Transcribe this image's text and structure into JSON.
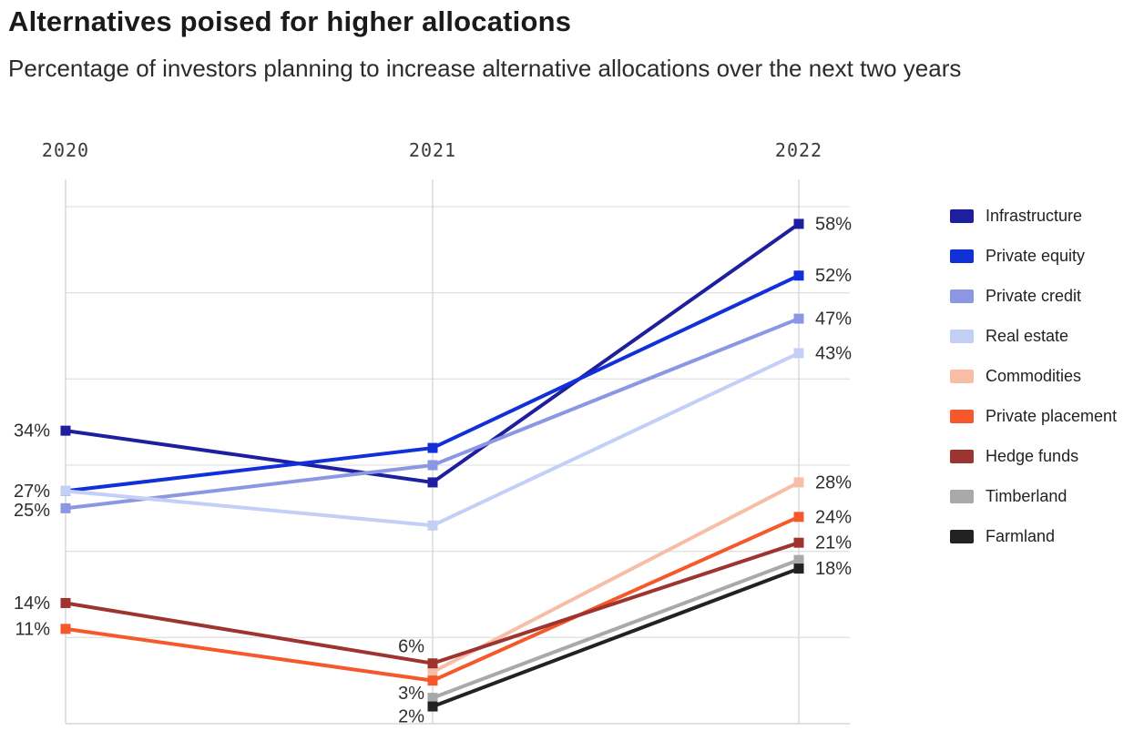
{
  "header": {
    "title": "Alternatives poised for higher allocations",
    "subtitle": "Percentage of investors planning to increase alternative allocations over the next two years"
  },
  "chart_data": {
    "type": "line",
    "title": "Alternatives poised for higher allocations",
    "subtitle": "Percentage of investors planning to increase alternative allocations over the next two years",
    "x_categories": [
      "2020",
      "2021",
      "2022"
    ],
    "series": [
      {
        "name": "Infrastructure",
        "color": "#1d1f9e",
        "values": [
          34,
          28,
          58
        ]
      },
      {
        "name": "Private equity",
        "color": "#1230d9",
        "values": [
          27,
          32,
          52
        ]
      },
      {
        "name": "Private credit",
        "color": "#8b97e2",
        "values": [
          25,
          30,
          47
        ]
      },
      {
        "name": "Real estate",
        "color": "#c3cff6",
        "values": [
          27,
          23,
          43
        ]
      },
      {
        "name": "Commodities",
        "color": "#f8bda6",
        "values": [
          null,
          6,
          28
        ]
      },
      {
        "name": "Private placement",
        "color": "#f5592b",
        "values": [
          11,
          5,
          24
        ]
      },
      {
        "name": "Hedge funds",
        "color": "#9e3430",
        "values": [
          14,
          7,
          21
        ]
      },
      {
        "name": "Timberland",
        "color": "#a9a9a9",
        "values": [
          null,
          3,
          19
        ]
      },
      {
        "name": "Farmland",
        "color": "#222222",
        "values": [
          null,
          2,
          18
        ]
      }
    ],
    "value_labels": [
      {
        "series": "Infrastructure",
        "x": "2020",
        "text": "34%",
        "side": "left",
        "dy": 0
      },
      {
        "series": "Private equity",
        "x": "2020",
        "text": "27%",
        "side": "left",
        "dy": 0
      },
      {
        "series": "Private credit",
        "x": "2020",
        "text": "25%",
        "side": "left",
        "dy": 2
      },
      {
        "series": "Hedge funds",
        "x": "2020",
        "text": "14%",
        "side": "left",
        "dy": 0
      },
      {
        "series": "Private placement",
        "x": "2020",
        "text": "11%",
        "side": "left",
        "dy": 0
      },
      {
        "series": "Commodities",
        "x": "2021",
        "text": "6%",
        "side": "left",
        "dy": -28
      },
      {
        "series": "Timberland",
        "x": "2021",
        "text": "3%",
        "side": "left",
        "dy": -5
      },
      {
        "series": "Farmland",
        "x": "2021",
        "text": "2%",
        "side": "left",
        "dy": 11
      },
      {
        "series": "Infrastructure",
        "x": "2022",
        "text": "58%",
        "side": "right",
        "dy": 0
      },
      {
        "series": "Private equity",
        "x": "2022",
        "text": "52%",
        "side": "right",
        "dy": 0
      },
      {
        "series": "Private credit",
        "x": "2022",
        "text": "47%",
        "side": "right",
        "dy": 0
      },
      {
        "series": "Real estate",
        "x": "2022",
        "text": "43%",
        "side": "right",
        "dy": 0
      },
      {
        "series": "Commodities",
        "x": "2022",
        "text": "28%",
        "side": "right",
        "dy": 0
      },
      {
        "series": "Private placement",
        "x": "2022",
        "text": "24%",
        "side": "right",
        "dy": 0
      },
      {
        "series": "Hedge funds",
        "x": "2022",
        "text": "21%",
        "side": "right",
        "dy": 0
      },
      {
        "series": "Farmland",
        "x": "2022",
        "text": "18%",
        "side": "right",
        "dy": 0
      }
    ],
    "xlabel": "",
    "ylabel": "",
    "ylim": [
      0,
      63
    ],
    "grid": {
      "show": true,
      "horizontal_step": 10
    },
    "legend_position": "right",
    "marker": "square"
  },
  "colors": {
    "grid_vertical": "#d4d4d4",
    "grid_horizontal": "#e2e2e2",
    "axis_bottom": "#cfcfcf",
    "year_label": "#3b3b3b",
    "value_label": "#2e2e2e"
  }
}
